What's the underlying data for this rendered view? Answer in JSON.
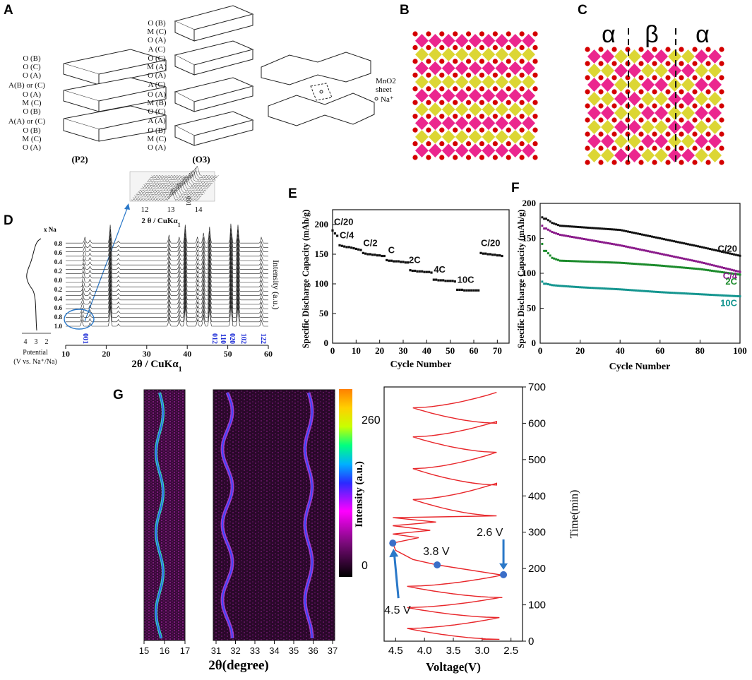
{
  "panel_labels": {
    "A": "A",
    "B": "B",
    "C": "C",
    "D": "D",
    "E": "E",
    "F": "F",
    "G": "G"
  },
  "panel_a": {
    "p2_layers": [
      "O (B)",
      "O (C)",
      "O (A)",
      "A(B) or (C)",
      "O (A)",
      "M (C)",
      "O (B)",
      "A(A) or (C)",
      "O (B)",
      "M (C)",
      "O (A)"
    ],
    "o3_layers": [
      "O (B)",
      "M (C)",
      "O (A)",
      "A (C)",
      "O (C)",
      "M (A)",
      "O (A)",
      "A (C)",
      "O (A)",
      "M (B)",
      "O (C)",
      "A (A)",
      "O (B)",
      "M (C)",
      "O (A)"
    ],
    "p2_caption": "(P2)",
    "o3_caption": "(O3)",
    "legend_sheet_1": "MnO2",
    "legend_sheet_2": "sheet",
    "legend_na": "Na⁺"
  },
  "panel_c": {
    "phase_left": "α",
    "phase_mid": "β",
    "phase_right": "α"
  },
  "panel_d": {
    "xna_title": "x Na",
    "xna_ticks": [
      "0.8",
      "0.6",
      "0.4",
      "0.2",
      "0.0",
      "0.2",
      "0.4",
      "0.6",
      "0.8",
      "1.0"
    ],
    "potential_ticks": [
      "4",
      "3",
      "2"
    ],
    "potential_label_1": "Potential",
    "potential_label_2": "(V vs. Na⁺/Na)",
    "x_ticks": [
      "10",
      "20",
      "30",
      "40",
      "50",
      "60"
    ],
    "xlabel": "2θ / CuKα",
    "xlabel_sub": "1",
    "ylabel": "Intensity (a.u.)",
    "hkl": [
      "001",
      "012",
      "110",
      "020",
      "102",
      "122"
    ],
    "inset_ticks": [
      "12",
      "13",
      "14"
    ],
    "inset_xlabel": "2 θ / CuKα",
    "inset_xlabel_sub": "1",
    "inset_peak": "001"
  },
  "colors": {
    "sheet_pink": "#e8007a",
    "sheet_yellow": "#d6cf10",
    "oxygen_red": "#d40000",
    "hkl_blue": "#1a2ad6",
    "curve_red": "#e8262a",
    "marker_blue": "#3a6ec8",
    "arrow_blue": "#2a78c8"
  },
  "chart_data": [
    {
      "id": "E",
      "type": "scatter",
      "title": "",
      "xlabel": "Cycle Number",
      "ylabel": "Specific Discharge Capacity (mAh/g)",
      "xlim": [
        0,
        75
      ],
      "ylim": [
        0,
        225
      ],
      "x_ticks": [
        "0",
        "10",
        "20",
        "30",
        "40",
        "50",
        "60",
        "70"
      ],
      "y_ticks": [
        "0",
        "50",
        "100",
        "150",
        "200"
      ],
      "series": [
        {
          "name": "C/20",
          "label": "C/20",
          "x": [
            0,
            1,
            2
          ],
          "values": [
            190,
            185,
            181
          ]
        },
        {
          "name": "C/4",
          "label": "C/4",
          "x": [
            3,
            4,
            5,
            6,
            7,
            8,
            9,
            10,
            11,
            12
          ],
          "values": [
            165,
            164,
            163,
            162,
            162,
            161,
            160,
            159,
            158,
            157
          ]
        },
        {
          "name": "C/2",
          "label": "C/2",
          "x": [
            13,
            14,
            15,
            16,
            17,
            18,
            19,
            20,
            21,
            22
          ],
          "values": [
            152,
            151,
            150,
            150,
            149,
            149,
            148,
            148,
            147,
            147
          ]
        },
        {
          "name": "C",
          "label": "C",
          "x": [
            23,
            24,
            25,
            26,
            27,
            28,
            29,
            30,
            31,
            32
          ],
          "values": [
            140,
            139,
            139,
            138,
            138,
            138,
            137,
            137,
            136,
            136
          ]
        },
        {
          "name": "2C",
          "label": "2C",
          "x": [
            33,
            34,
            35,
            36,
            37,
            38,
            39,
            40,
            41,
            42
          ],
          "values": [
            123,
            122,
            122,
            121,
            121,
            121,
            120,
            120,
            120,
            119
          ]
        },
        {
          "name": "4C",
          "label": "4C",
          "x": [
            43,
            44,
            45,
            46,
            47,
            48,
            49,
            50,
            51,
            52
          ],
          "values": [
            107,
            107,
            106,
            106,
            106,
            105,
            105,
            105,
            105,
            104
          ]
        },
        {
          "name": "10C",
          "label": "10C",
          "x": [
            53,
            54,
            55,
            56,
            57,
            58,
            59,
            60,
            61,
            62
          ],
          "values": [
            90,
            90,
            90,
            89,
            89,
            89,
            89,
            89,
            89,
            89
          ]
        },
        {
          "name": "C/20 (return)",
          "label": "C/20",
          "x": [
            63,
            64,
            65,
            66,
            67,
            68,
            69,
            70,
            71,
            72
          ],
          "values": [
            152,
            151,
            151,
            150,
            150,
            149,
            149,
            148,
            148,
            147
          ]
        }
      ]
    },
    {
      "id": "F",
      "type": "scatter",
      "title": "",
      "xlabel": "Cycle Number",
      "ylabel": "Specific Discharge Capacity (mAh/g)",
      "xlim": [
        0,
        100
      ],
      "ylim": [
        0,
        200
      ],
      "x_ticks": [
        "0",
        "20",
        "40",
        "60",
        "80",
        "100"
      ],
      "y_ticks": [
        "0",
        "50",
        "100",
        "150",
        "200"
      ],
      "series": [
        {
          "name": "C/20",
          "label": "C/20",
          "color": "#111111",
          "start": 180,
          "anchor_x": [
            3,
            6,
            10,
            20,
            40,
            60,
            80,
            100
          ],
          "anchor_y": [
            178,
            172,
            168,
            166,
            162,
            150,
            138,
            125
          ]
        },
        {
          "name": "C/4",
          "label": "C/4",
          "color": "#8a1a8a",
          "start": 168,
          "anchor_x": [
            3,
            6,
            10,
            20,
            40,
            60,
            80,
            100
          ],
          "anchor_y": [
            164,
            159,
            155,
            150,
            140,
            128,
            116,
            102
          ]
        },
        {
          "name": "2C",
          "label": "2C",
          "color": "#1a8a2a",
          "start": 142,
          "anchor_x": [
            3,
            6,
            10,
            20,
            40,
            60,
            80,
            100
          ],
          "anchor_y": [
            132,
            122,
            118,
            117,
            115,
            111,
            106,
            98
          ]
        },
        {
          "name": "10C",
          "label": "10C",
          "color": "#13958f",
          "start": 88,
          "anchor_x": [
            3,
            6,
            10,
            20,
            40,
            60,
            80,
            100
          ],
          "anchor_y": [
            85,
            83,
            82,
            80,
            77,
            73,
            70,
            67
          ]
        }
      ]
    },
    {
      "id": "G",
      "type": "heatmap",
      "xlabel": "2θ(degree)",
      "left_map_ticks": [
        "15",
        "16",
        "17"
      ],
      "right_map_ticks": [
        "31",
        "32",
        "33",
        "34",
        "35",
        "36",
        "37"
      ],
      "colorbar_label": "Intensity (a.u.)",
      "colorbar_ticks": [
        "260",
        "0"
      ],
      "colorbar_range": [
        0,
        320
      ]
    },
    {
      "id": "G-voltage",
      "type": "line",
      "xlabel": "Voltage(V)",
      "ylabel": "Time(min)",
      "xlim": [
        4.7,
        2.3
      ],
      "ylim": [
        0,
        700
      ],
      "x_ticks": [
        "4.5",
        "4.0",
        "3.5",
        "3.0",
        "2.5"
      ],
      "y_ticks": [
        "0",
        "100",
        "200",
        "300",
        "400",
        "500",
        "600",
        "700"
      ],
      "annotations": [
        {
          "label": "4.5 V",
          "voltage": 4.55,
          "time": 270
        },
        {
          "label": "3.8 V",
          "voltage": 3.78,
          "time": 210
        },
        {
          "label": "2.6 V",
          "voltage": 2.63,
          "time": 183
        }
      ]
    }
  ]
}
